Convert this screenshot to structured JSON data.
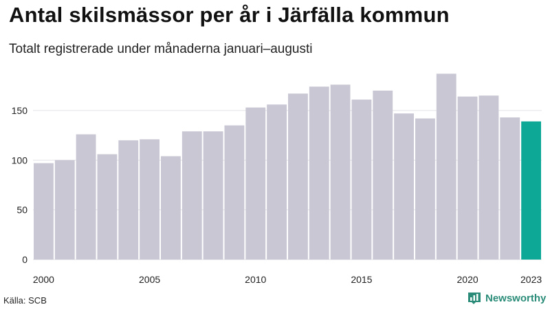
{
  "chart_data": {
    "type": "bar",
    "title": "Antal skilsmässor per år i Järfälla kommun",
    "subtitle": "Totalt registrerade under månaderna januari–augusti",
    "categories": [
      "2000",
      "2001",
      "2002",
      "2003",
      "2004",
      "2005",
      "2006",
      "2007",
      "2008",
      "2009",
      "2010",
      "2011",
      "2012",
      "2013",
      "2014",
      "2015",
      "2016",
      "2017",
      "2018",
      "2019",
      "2020",
      "2021",
      "2022",
      "2023"
    ],
    "values": [
      97,
      100,
      126,
      106,
      120,
      121,
      104,
      129,
      129,
      135,
      153,
      156,
      167,
      174,
      176,
      161,
      170,
      147,
      142,
      187,
      164,
      165,
      143,
      139
    ],
    "x_tick_labels": [
      "2000",
      "2005",
      "2010",
      "2015",
      "2020",
      "2023"
    ],
    "y_ticks": [
      0,
      50,
      100,
      150
    ],
    "ylim": [
      0,
      190
    ],
    "grid": true,
    "colors": {
      "default": "#c8c7d3",
      "highlight": "#0ea896",
      "highlight_category": "2023"
    },
    "source": "Källa: SCB"
  },
  "brand": {
    "name": "Newsworthy",
    "icon": "bar-chart-icon",
    "color": "#2a8c78"
  }
}
